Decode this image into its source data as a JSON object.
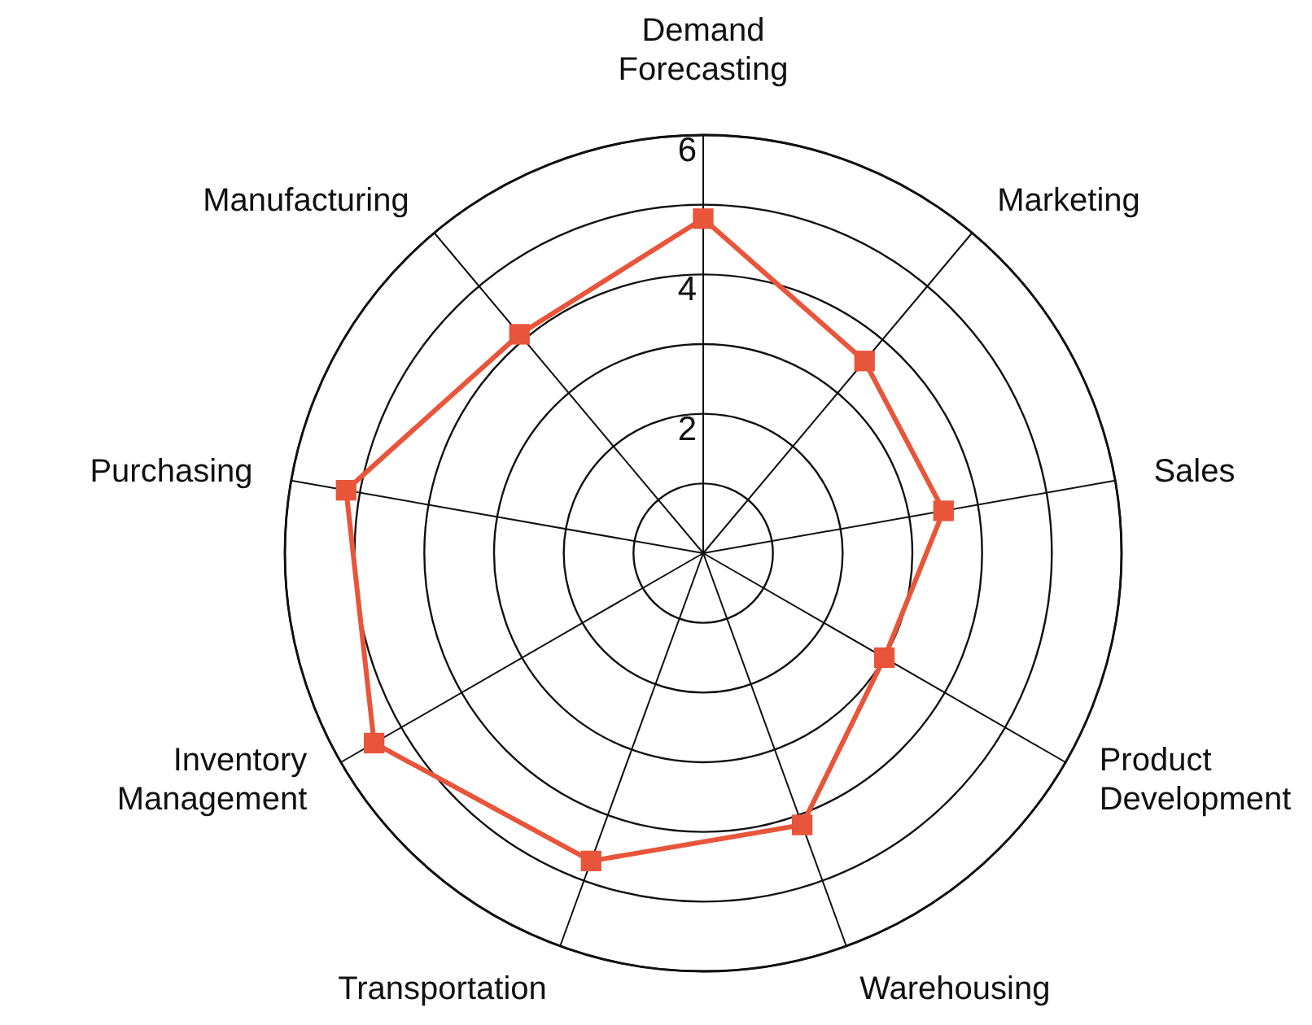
{
  "chart_data": {
    "type": "radar",
    "categories": [
      "Demand\nForecasting",
      "Marketing",
      "Sales",
      "Product\nDevelopment",
      "Warehousing",
      "Transportation",
      "Inventory\nManagement",
      "Purchasing",
      "Manufacturing"
    ],
    "series": [
      {
        "color": "#e8553a",
        "values": [
          4.8,
          3.6,
          3.5,
          3.0,
          4.15,
          4.7,
          5.45,
          5.2,
          4.1
        ]
      }
    ],
    "ylim": [
      0,
      6
    ],
    "yticks": [
      2,
      4,
      6
    ],
    "grid": true,
    "marker": "square",
    "line_style": "solid"
  }
}
